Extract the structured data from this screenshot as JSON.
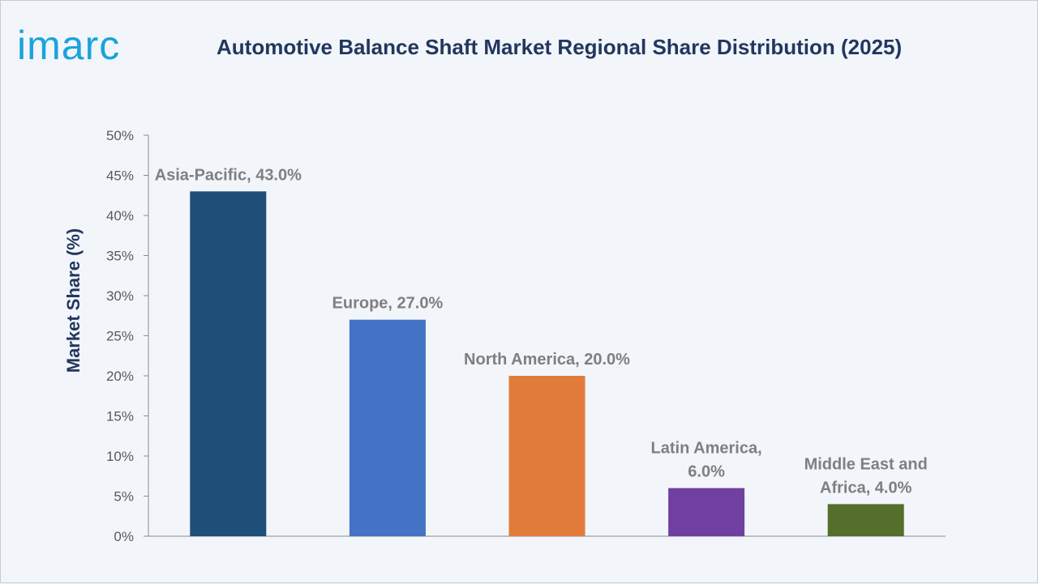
{
  "logo": {
    "text": "imarc",
    "color": "#1aa3dc"
  },
  "title": "Automotive Balance Shaft Market Regional Share Distribution (2025)",
  "chart_data": {
    "type": "bar",
    "title": "Automotive Balance Shaft Market Regional Share Distribution (2025)",
    "xlabel": "",
    "ylabel": "Market Share (%)",
    "ylim": [
      0,
      50
    ],
    "yticks": [
      0,
      5,
      10,
      15,
      20,
      25,
      30,
      35,
      40,
      45,
      50
    ],
    "ytick_labels": [
      "0%",
      "5%",
      "10%",
      "15%",
      "20%",
      "25%",
      "30%",
      "35%",
      "40%",
      "45%",
      "50%"
    ],
    "grid": false,
    "legend": "none",
    "categories": [
      "Asia-Pacific",
      "Europe",
      "North America",
      "Latin America",
      "Middle East and Africa"
    ],
    "values": [
      43.0,
      27.0,
      20.0,
      6.0,
      4.0
    ],
    "data_labels": [
      [
        "Asia-Pacific, 43.0%"
      ],
      [
        "Europe, 27.0%"
      ],
      [
        "North America, 20.0%"
      ],
      [
        "Latin America,",
        "6.0%"
      ],
      [
        "Middle East and",
        "Africa, 4.0%"
      ]
    ],
    "colors": [
      "#1f4e79",
      "#4472c4",
      "#e07b39",
      "#7040a0",
      "#546e2c"
    ]
  }
}
